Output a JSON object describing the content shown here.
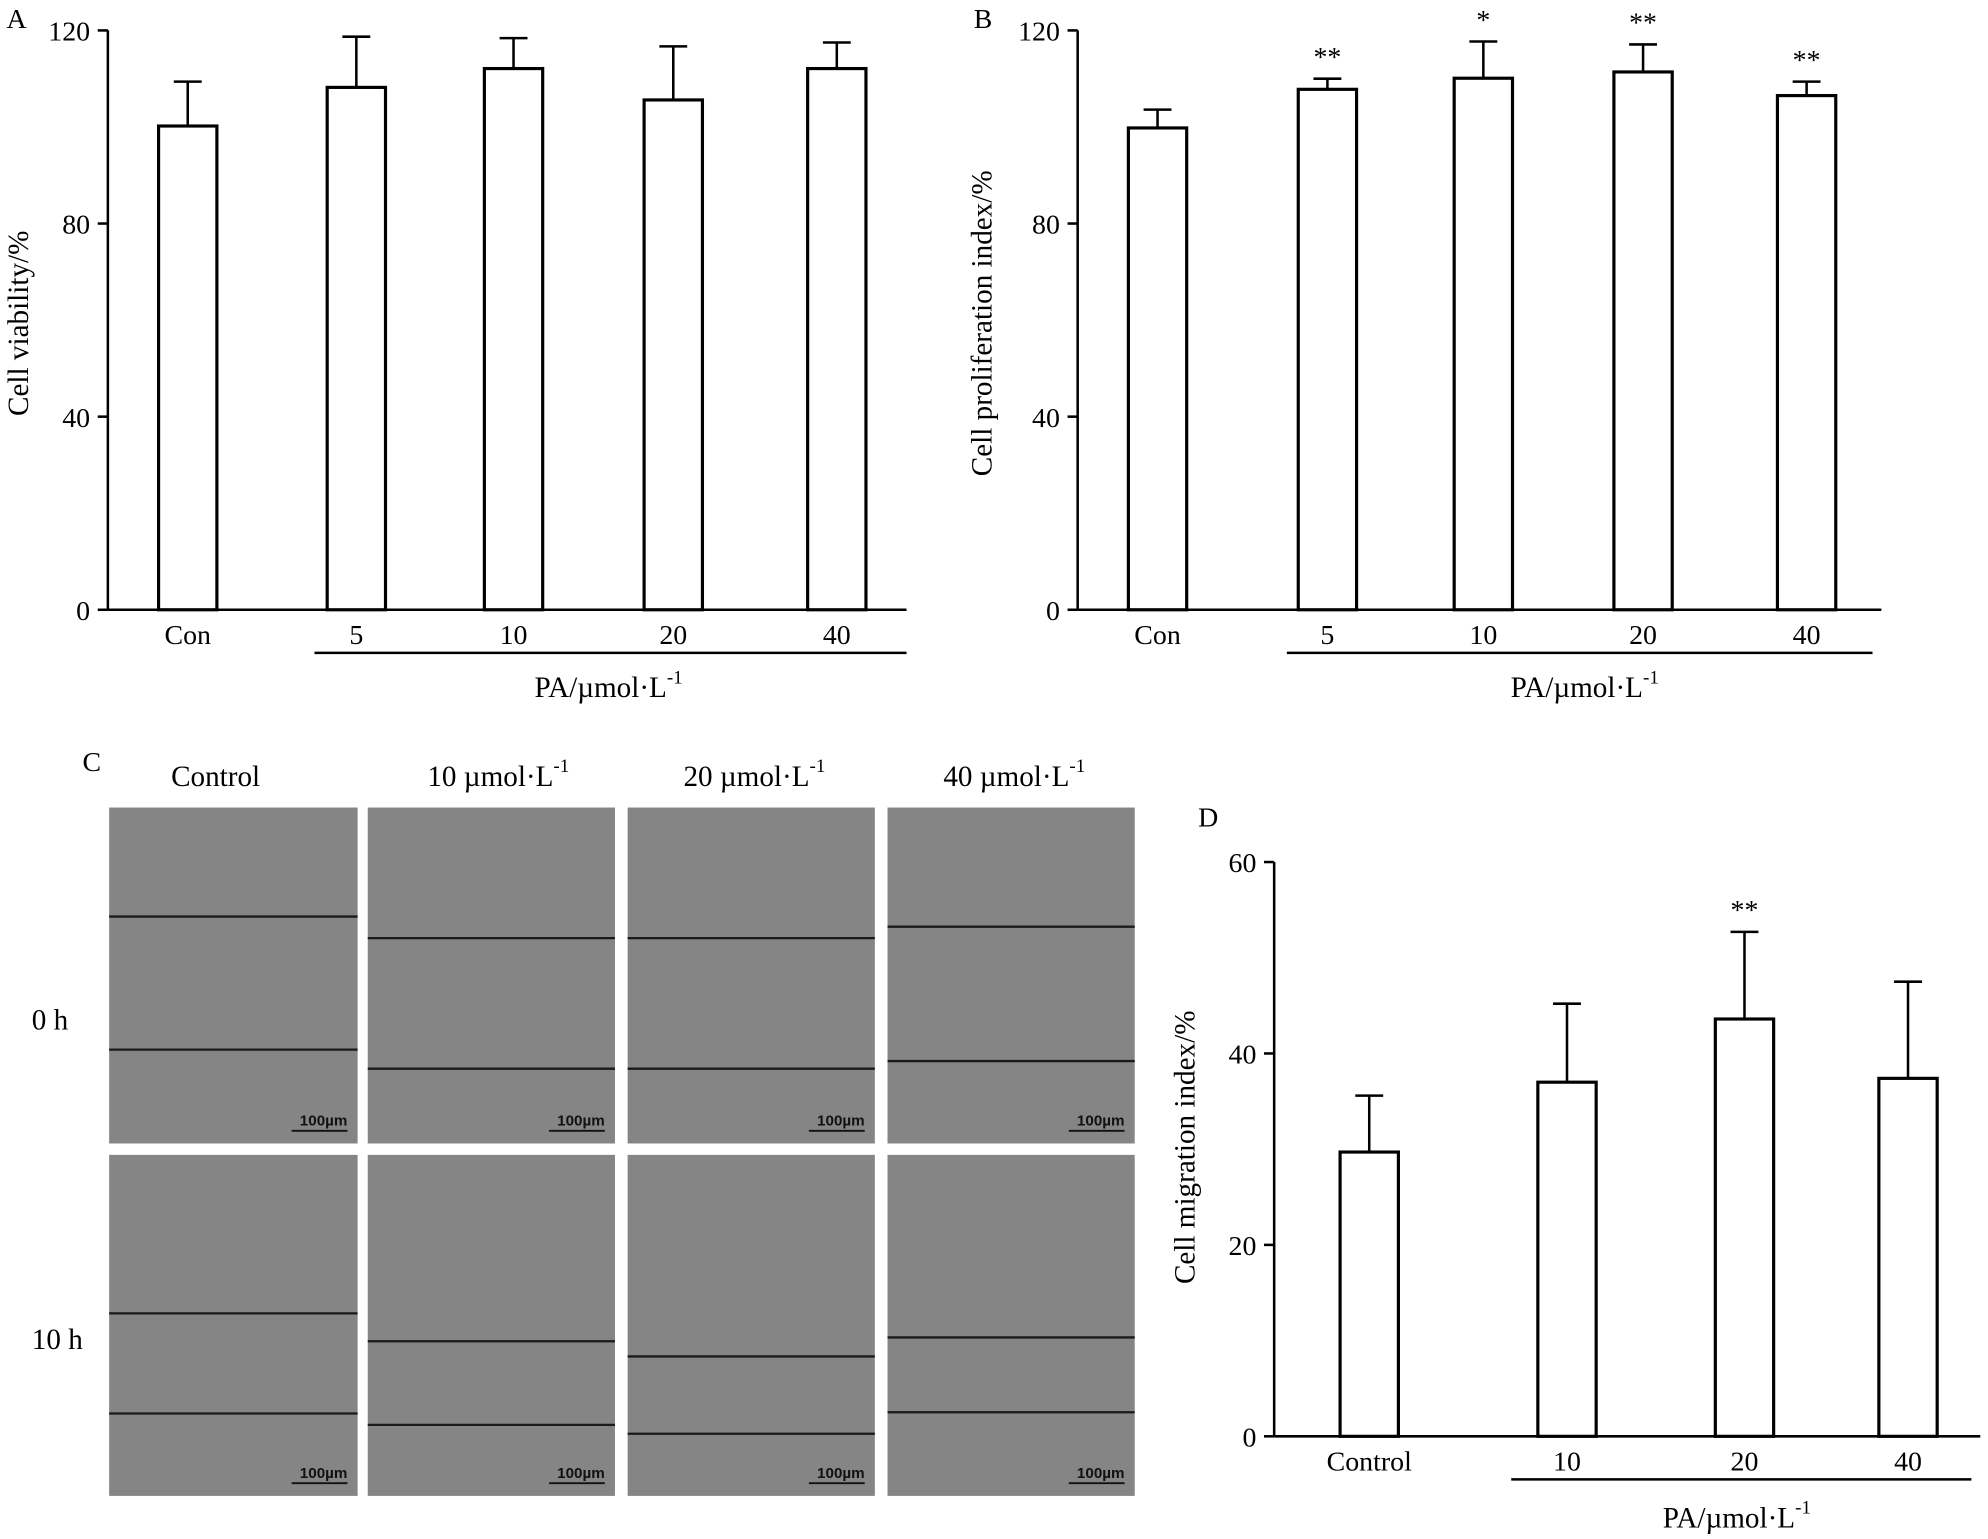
{
  "chart_data": [
    {
      "panel": "A",
      "type": "bar",
      "ylabel": "Cell viability/%",
      "xlabel": "PA/µmol·L",
      "xlabel_sup": "-1",
      "categories": [
        "Con",
        "5",
        "10",
        "20",
        "40"
      ],
      "values": [
        100.2,
        108.2,
        112.1,
        105.6,
        112.1
      ],
      "errors": [
        9.2,
        10.5,
        6.3,
        11.1,
        5.4
      ],
      "annotations": [
        "",
        "",
        "",
        "",
        ""
      ],
      "yticks": [
        "0",
        "40",
        "80",
        "120"
      ],
      "ylim": [
        0,
        120
      ]
    },
    {
      "panel": "B",
      "type": "bar",
      "ylabel": "Cell proliferation index/%",
      "xlabel": "PA/µmol·L",
      "xlabel_sup": "-1",
      "categories": [
        "Con",
        "5",
        "10",
        "20",
        "40"
      ],
      "values": [
        99.8,
        107.8,
        110.1,
        111.4,
        106.5
      ],
      "errors": [
        3.8,
        2.2,
        7.6,
        5.7,
        2.9
      ],
      "annotations": [
        "",
        "**",
        "*",
        "**",
        "**"
      ],
      "yticks": [
        "0",
        "40",
        "80",
        "120"
      ],
      "ylim": [
        0,
        120
      ]
    },
    {
      "panel": "D",
      "type": "bar",
      "ylabel": "Cell migration index/%",
      "xlabel": "PA/µmol·L",
      "xlabel_sup": "-1",
      "categories": [
        "Control",
        "10",
        "20",
        "40"
      ],
      "values": [
        29.7,
        37.0,
        43.6,
        37.4
      ],
      "errors": [
        5.9,
        8.2,
        9.1,
        10.1
      ],
      "annotations": [
        "",
        "",
        "**",
        ""
      ],
      "yticks": [
        "0",
        "20",
        "40",
        "60"
      ],
      "ylim": [
        0,
        60
      ]
    }
  ],
  "micrographs": {
    "panel": "C",
    "columns": [
      {
        "label": "Control",
        "sup": ""
      },
      {
        "label": "10 µmol·L",
        "sup": "-1"
      },
      {
        "label": "20 µmol·L",
        "sup": "-1"
      },
      {
        "label": "40 µmol·L",
        "sup": "-1"
      }
    ],
    "rows": [
      "0 h",
      "10 h"
    ],
    "scale_bar": "100µm",
    "image_color": "#858585"
  }
}
